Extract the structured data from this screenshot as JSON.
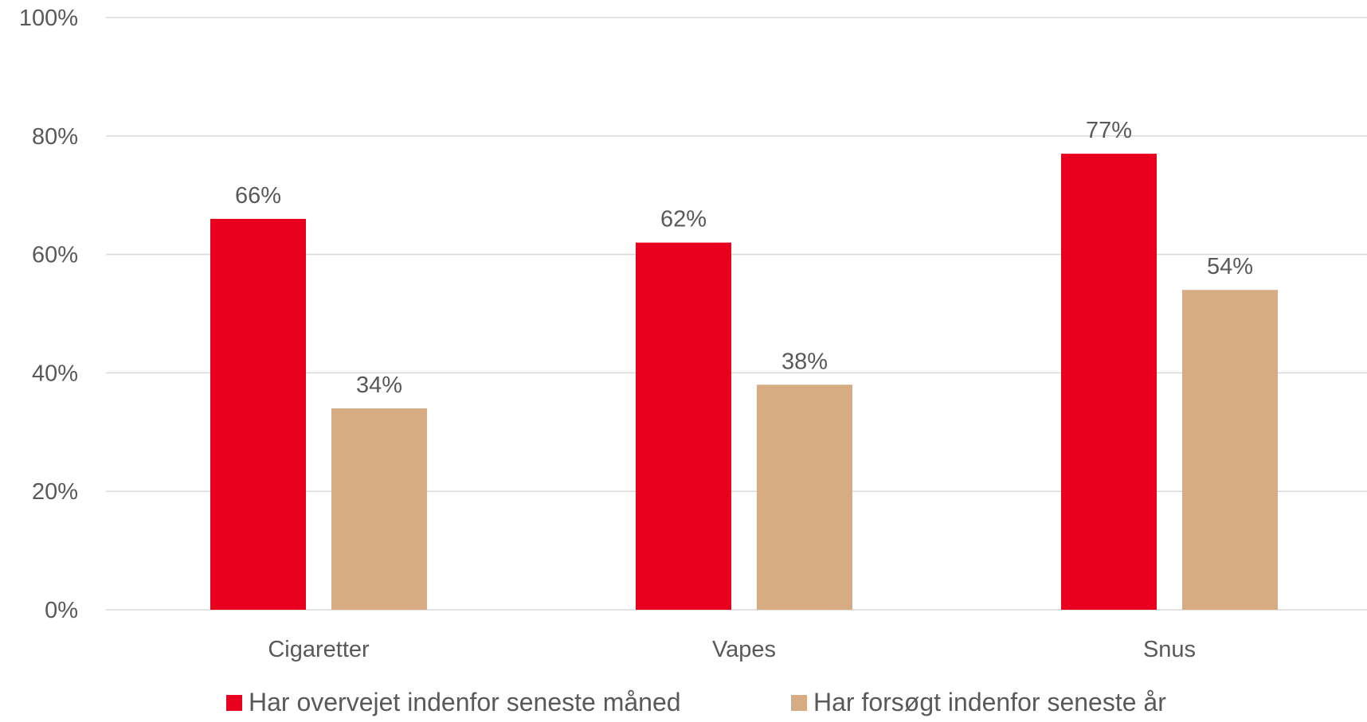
{
  "chart_data": {
    "type": "bar",
    "title": "",
    "xlabel": "",
    "ylabel": "",
    "categories": [
      "Cigaretter",
      "Vapes",
      "Snus"
    ],
    "series": [
      {
        "name": "Har overvejet indenfor seneste måned",
        "color": "#e8001e",
        "values": [
          66,
          62,
          77
        ],
        "labels": [
          "66%",
          "62%",
          "77%"
        ]
      },
      {
        "name": "Har forsøgt indenfor seneste år",
        "color": "#d7ac82",
        "values": [
          34,
          38,
          54
        ],
        "labels": [
          "34%",
          "38%",
          "54%"
        ]
      }
    ],
    "ylim": [
      0,
      100
    ],
    "yticks": [
      0,
      20,
      40,
      60,
      80,
      100
    ],
    "ytick_labels": [
      "0%",
      "20%",
      "40%",
      "60%",
      "80%",
      "100%"
    ],
    "grid": true,
    "legend_position": "bottom"
  }
}
